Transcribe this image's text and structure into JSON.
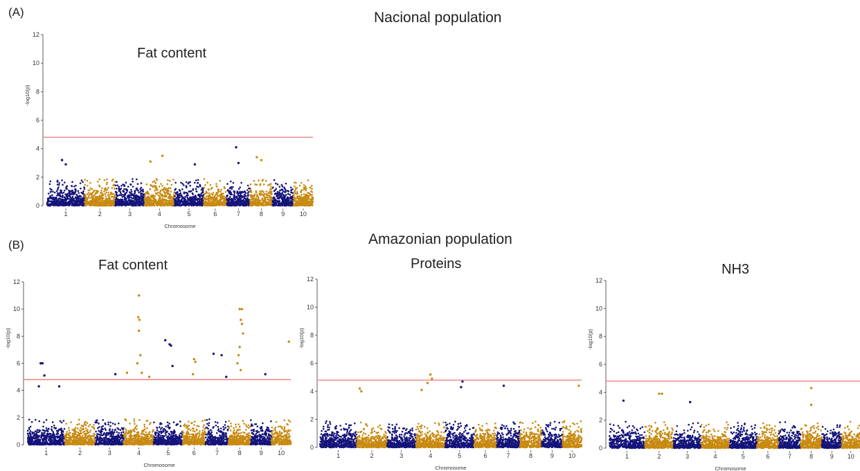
{
  "panels": {
    "A": {
      "letter": "(A)",
      "title": "Nacional population"
    },
    "B": {
      "letter": "(B)",
      "title": "Amazonian population"
    }
  },
  "colors": {
    "odd_chromosome": "#14147a",
    "even_chromosome": "#c88a12",
    "threshold": "#f08080",
    "axis": "#333333"
  },
  "chart_data": [
    {
      "type": "scatter",
      "id": "nacional-fat",
      "title": "Fat content",
      "xlabel": "Chromosome",
      "ylabel": "-log10(p)",
      "ylim": [
        0,
        12
      ],
      "yticks": [
        0,
        2,
        4,
        6,
        8,
        10,
        12
      ],
      "chromosomes": [
        "1",
        "2",
        "3",
        "4",
        "5",
        "6",
        "7",
        "8",
        "9",
        "10"
      ],
      "threshold": 4.8,
      "background_max": [
        2.6,
        2.4,
        1.9,
        2.9,
        2.4,
        2.3,
        2.6,
        2.6,
        2.1,
        1.8
      ],
      "peaks": [
        {
          "chr": 1,
          "pos": 0.4,
          "value": 3.2
        },
        {
          "chr": 1,
          "pos": 0.5,
          "value": 2.9
        },
        {
          "chr": 4,
          "pos": 0.2,
          "value": 3.1
        },
        {
          "chr": 4,
          "pos": 0.6,
          "value": 3.5
        },
        {
          "chr": 5,
          "pos": 0.7,
          "value": 2.9
        },
        {
          "chr": 7,
          "pos": 0.4,
          "value": 4.1
        },
        {
          "chr": 7,
          "pos": 0.5,
          "value": 3.0
        },
        {
          "chr": 8,
          "pos": 0.3,
          "value": 3.4
        },
        {
          "chr": 8,
          "pos": 0.5,
          "value": 3.2
        }
      ]
    },
    {
      "type": "scatter",
      "id": "amazonian-fat",
      "title": "Fat content",
      "xlabel": "Chromosome",
      "ylabel": "-log10(p)",
      "ylim": [
        0,
        12
      ],
      "yticks": [
        0,
        2,
        4,
        6,
        8,
        10,
        12
      ],
      "chromosomes": [
        "1",
        "2",
        "3",
        "4",
        "5",
        "6",
        "7",
        "8",
        "9",
        "10"
      ],
      "threshold": 4.8,
      "background_max": [
        3.0,
        2.2,
        2.4,
        3.2,
        2.7,
        2.9,
        2.8,
        3.4,
        2.6,
        1.8
      ],
      "peaks": [
        {
          "chr": 1,
          "pos": 0.35,
          "value": 6.0
        },
        {
          "chr": 1,
          "pos": 0.4,
          "value": 6.0
        },
        {
          "chr": 1,
          "pos": 0.45,
          "value": 5.1
        },
        {
          "chr": 1,
          "pos": 0.3,
          "value": 4.3
        },
        {
          "chr": 1,
          "pos": 0.85,
          "value": 4.3
        },
        {
          "chr": 3,
          "pos": 0.7,
          "value": 5.2
        },
        {
          "chr": 4,
          "pos": 0.1,
          "value": 5.3
        },
        {
          "chr": 4,
          "pos": 0.5,
          "value": 11.0
        },
        {
          "chr": 4,
          "pos": 0.48,
          "value": 9.4
        },
        {
          "chr": 4,
          "pos": 0.52,
          "value": 9.2
        },
        {
          "chr": 4,
          "pos": 0.5,
          "value": 8.4
        },
        {
          "chr": 4,
          "pos": 0.55,
          "value": 6.6
        },
        {
          "chr": 4,
          "pos": 0.45,
          "value": 6.0
        },
        {
          "chr": 4,
          "pos": 0.6,
          "value": 5.3
        },
        {
          "chr": 4,
          "pos": 0.85,
          "value": 5.0
        },
        {
          "chr": 5,
          "pos": 0.4,
          "value": 7.7
        },
        {
          "chr": 5,
          "pos": 0.55,
          "value": 7.4
        },
        {
          "chr": 5,
          "pos": 0.6,
          "value": 7.3
        },
        {
          "chr": 5,
          "pos": 0.65,
          "value": 5.8
        },
        {
          "chr": 6,
          "pos": 0.5,
          "value": 6.3
        },
        {
          "chr": 6,
          "pos": 0.55,
          "value": 6.1
        },
        {
          "chr": 6,
          "pos": 0.45,
          "value": 5.2
        },
        {
          "chr": 7,
          "pos": 0.35,
          "value": 6.7
        },
        {
          "chr": 7,
          "pos": 0.7,
          "value": 6.6
        },
        {
          "chr": 7,
          "pos": 0.9,
          "value": 5.0
        },
        {
          "chr": 8,
          "pos": 0.5,
          "value": 10.0
        },
        {
          "chr": 8,
          "pos": 0.6,
          "value": 10.0
        },
        {
          "chr": 8,
          "pos": 0.55,
          "value": 9.2
        },
        {
          "chr": 8,
          "pos": 0.6,
          "value": 8.9
        },
        {
          "chr": 8,
          "pos": 0.65,
          "value": 8.2
        },
        {
          "chr": 8,
          "pos": 0.5,
          "value": 7.2
        },
        {
          "chr": 8,
          "pos": 0.45,
          "value": 6.6
        },
        {
          "chr": 8,
          "pos": 0.4,
          "value": 6.0
        },
        {
          "chr": 8,
          "pos": 0.55,
          "value": 5.5
        },
        {
          "chr": 9,
          "pos": 0.7,
          "value": 5.2
        },
        {
          "chr": 10,
          "pos": 0.9,
          "value": 7.6
        }
      ]
    },
    {
      "type": "scatter",
      "id": "amazonian-proteins",
      "title": "Proteins",
      "xlabel": "Chromosome",
      "ylabel": "-log10(p)",
      "ylim": [
        0,
        12
      ],
      "yticks": [
        0,
        2,
        4,
        6,
        8,
        10,
        12
      ],
      "chromosomes": [
        "1",
        "2",
        "3",
        "4",
        "5",
        "6",
        "7",
        "8",
        "9",
        "10"
      ],
      "threshold": 4.8,
      "background_max": [
        2.8,
        3.6,
        2.8,
        3.4,
        2.6,
        2.4,
        2.8,
        3.0,
        2.8,
        2.6
      ],
      "peaks": [
        {
          "chr": 2,
          "pos": 0.1,
          "value": 4.2
        },
        {
          "chr": 2,
          "pos": 0.15,
          "value": 4.0
        },
        {
          "chr": 4,
          "pos": 0.2,
          "value": 4.1
        },
        {
          "chr": 4,
          "pos": 0.4,
          "value": 4.6
        },
        {
          "chr": 4,
          "pos": 0.5,
          "value": 5.2
        },
        {
          "chr": 4,
          "pos": 0.55,
          "value": 4.9
        },
        {
          "chr": 5,
          "pos": 0.6,
          "value": 4.7
        },
        {
          "chr": 5,
          "pos": 0.55,
          "value": 4.3
        },
        {
          "chr": 7,
          "pos": 0.3,
          "value": 4.4
        },
        {
          "chr": 10,
          "pos": 0.85,
          "value": 4.4
        }
      ]
    },
    {
      "type": "scatter",
      "id": "amazonian-nh3",
      "title": "NH3",
      "xlabel": "Chromosome",
      "ylabel": "-log10(p)",
      "ylim": [
        0,
        12
      ],
      "yticks": [
        0,
        2,
        4,
        6,
        8,
        10,
        12
      ],
      "chromosomes": [
        "1",
        "2",
        "3",
        "4",
        "5",
        "6",
        "7",
        "8",
        "9",
        "10"
      ],
      "threshold": 4.8,
      "background_max": [
        2.6,
        2.9,
        2.7,
        2.4,
        1.9,
        2.2,
        2.0,
        2.1,
        2.6,
        2.1
      ],
      "peaks": [
        {
          "chr": 1,
          "pos": 0.4,
          "value": 3.4
        },
        {
          "chr": 2,
          "pos": 0.5,
          "value": 3.9
        },
        {
          "chr": 2,
          "pos": 0.6,
          "value": 3.9
        },
        {
          "chr": 3,
          "pos": 0.6,
          "value": 3.3
        },
        {
          "chr": 8,
          "pos": 0.5,
          "value": 4.3
        },
        {
          "chr": 8,
          "pos": 0.5,
          "value": 3.1
        }
      ]
    }
  ]
}
